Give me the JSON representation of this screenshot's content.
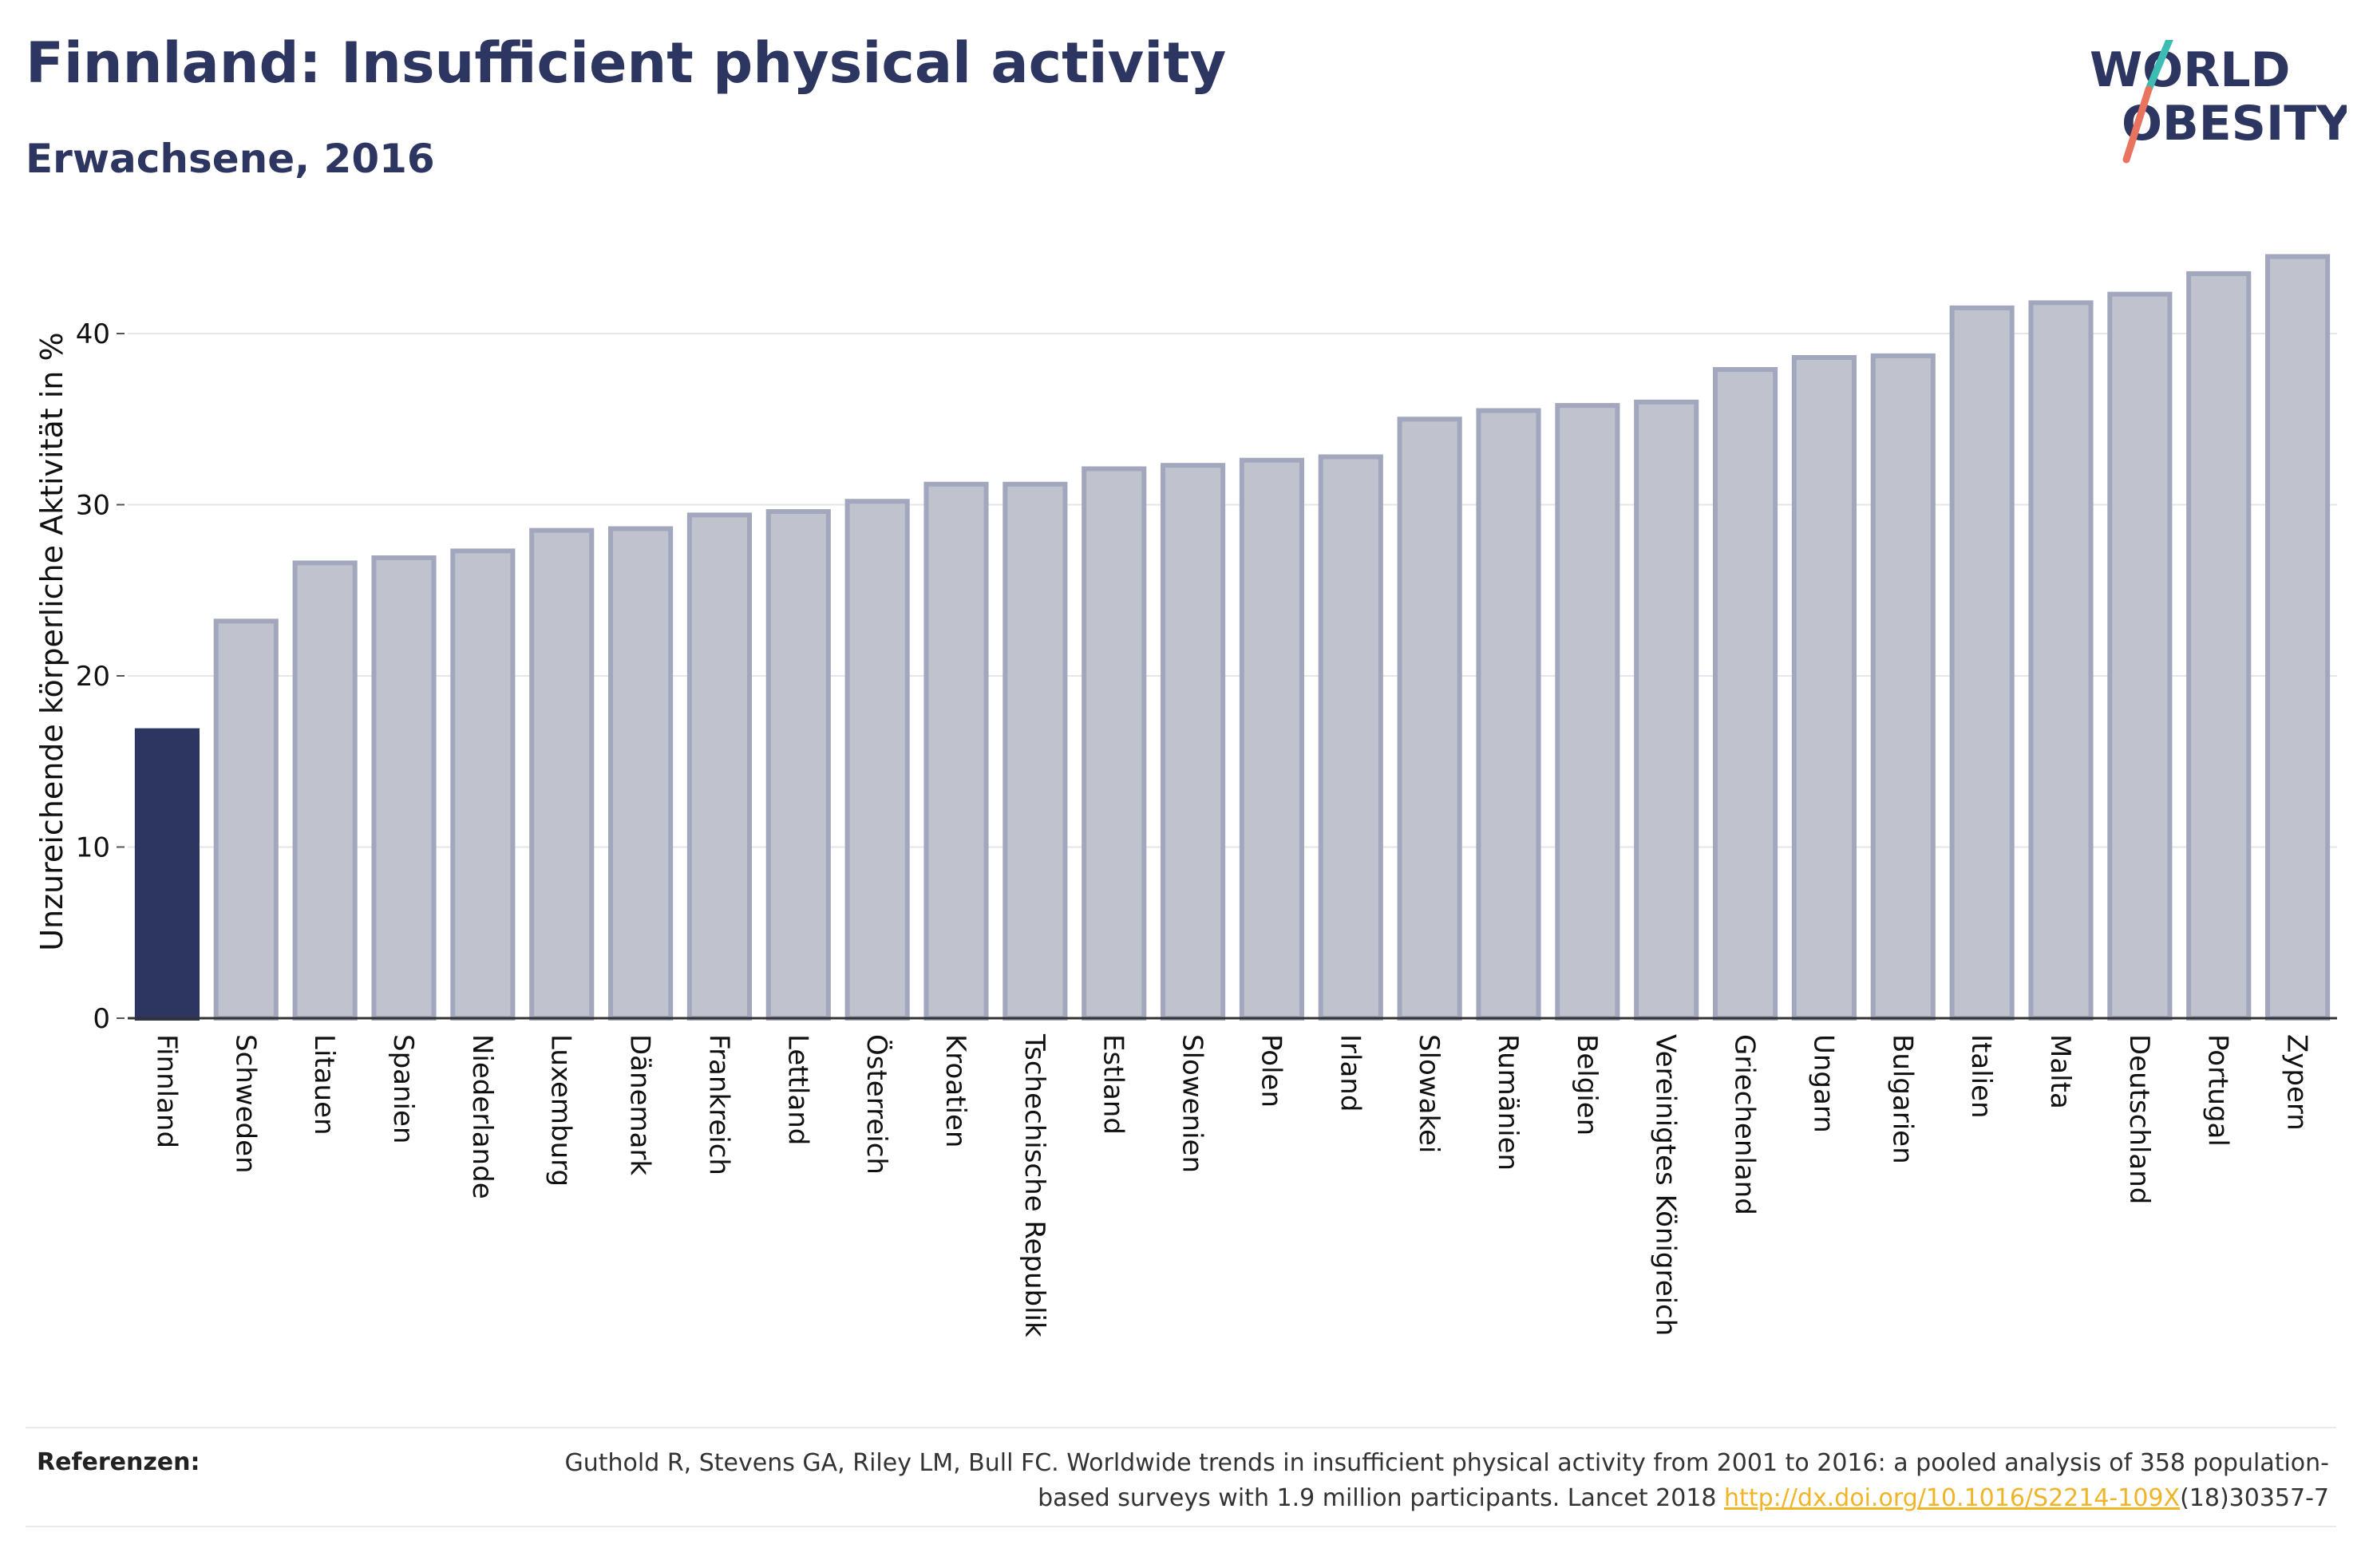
{
  "header": {
    "title": "Finnland: Insufficient physical activity",
    "subtitle": "Erwachsene, 2016"
  },
  "logo": {
    "line1": "WORLD",
    "line2": "OBESITY",
    "colors": {
      "text": "#2d3561",
      "slash_top": "#3dbcb4",
      "slash_bottom": "#e8735f"
    }
  },
  "chart_data": {
    "type": "bar",
    "title": "Finnland: Insufficient physical activity",
    "subtitle": "Erwachsene, 2016",
    "ylabel": "Unzureichende körperliche Aktivität in %",
    "xlabel": "",
    "ylim": [
      0,
      45
    ],
    "yticks": [
      0,
      10,
      20,
      30,
      40
    ],
    "grid": true,
    "highlight": "Finnland",
    "colors": {
      "highlight": "#2d3561",
      "bar_fill": "#c0c3ce",
      "bar_stroke": "#a2a7bd"
    },
    "categories": [
      "Finnland",
      "Schweden",
      "Litauen",
      "Spanien",
      "Niederlande",
      "Luxemburg",
      "Dänemark",
      "Frankreich",
      "Lettland",
      "Österreich",
      "Kroatien",
      "Tschechische Republik",
      "Estland",
      "Slowenien",
      "Polen",
      "Irland",
      "Slowakei",
      "Rumänien",
      "Belgien",
      "Vereinigtes Königreich",
      "Griechenland",
      "Ungarn",
      "Bulgarien",
      "Italien",
      "Malta",
      "Deutschland",
      "Portugal",
      "Zypern"
    ],
    "values": [
      16.8,
      23.2,
      26.6,
      26.9,
      27.3,
      28.5,
      28.6,
      29.4,
      29.6,
      30.2,
      31.2,
      31.2,
      32.1,
      32.3,
      32.6,
      32.8,
      35.0,
      35.5,
      35.8,
      36.0,
      37.9,
      38.6,
      38.7,
      41.5,
      41.8,
      42.3,
      43.5,
      44.5
    ]
  },
  "references": {
    "label": "Referenzen:",
    "text_before": "Guthold R, Stevens GA, Riley LM, Bull FC. Worldwide trends in insufficient physical activity from 2001 to 2016: a pooled analysis of 358 population-based surveys with 1.9 million participants. Lancet 2018 ",
    "link": "http://dx.doi.org/10.1016/S2214-109X",
    "text_after": "(18)30357-7"
  }
}
